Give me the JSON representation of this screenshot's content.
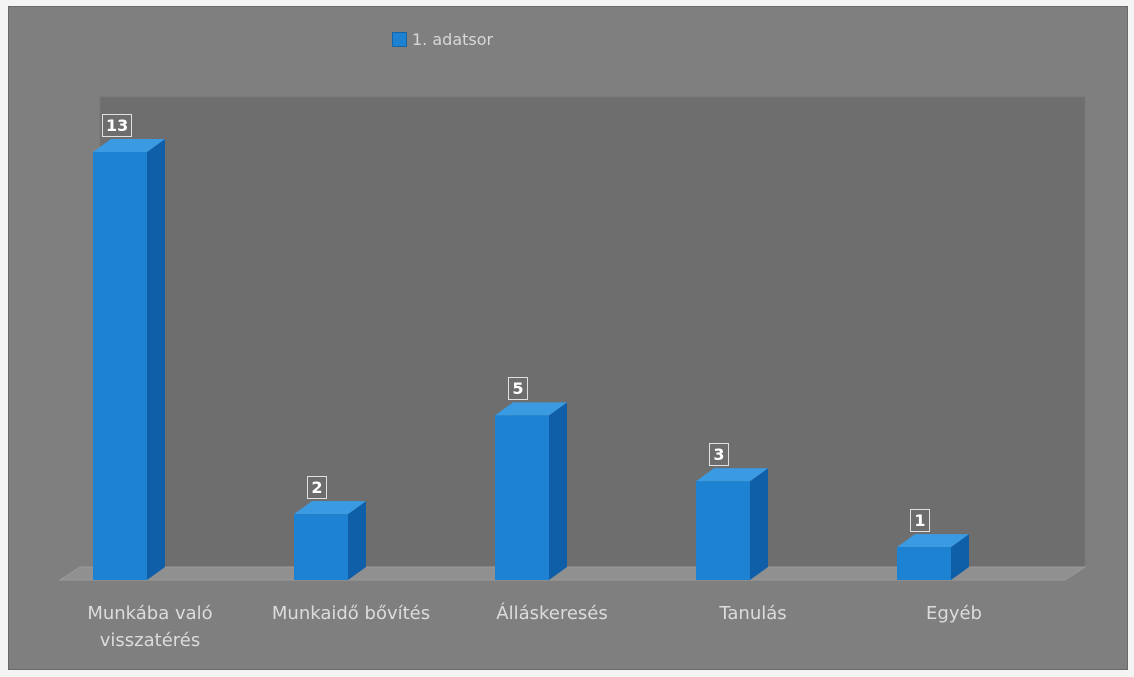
{
  "chart_data": {
    "type": "bar",
    "categories": [
      "Munkába való\nvisszatérés",
      "Munkaidő bővítés",
      "Álláskeresés",
      "Tanulás",
      "Egyéb"
    ],
    "series": [
      {
        "name": "1. adatsor",
        "values": [
          13,
          2,
          5,
          3,
          1
        ]
      }
    ],
    "data_labels": [
      "13",
      "2",
      "5",
      "3",
      "1"
    ],
    "legend": "top-center",
    "grid": false,
    "ylim": [
      0,
      13
    ],
    "colors": {
      "bar": "#1e82d2",
      "bar_side": "#0f5ea8",
      "bar_top": "#3a9be2",
      "plot_bg": "#6e6e6e",
      "frame_bg": "#7f7f7f",
      "floor": "#909090"
    }
  }
}
